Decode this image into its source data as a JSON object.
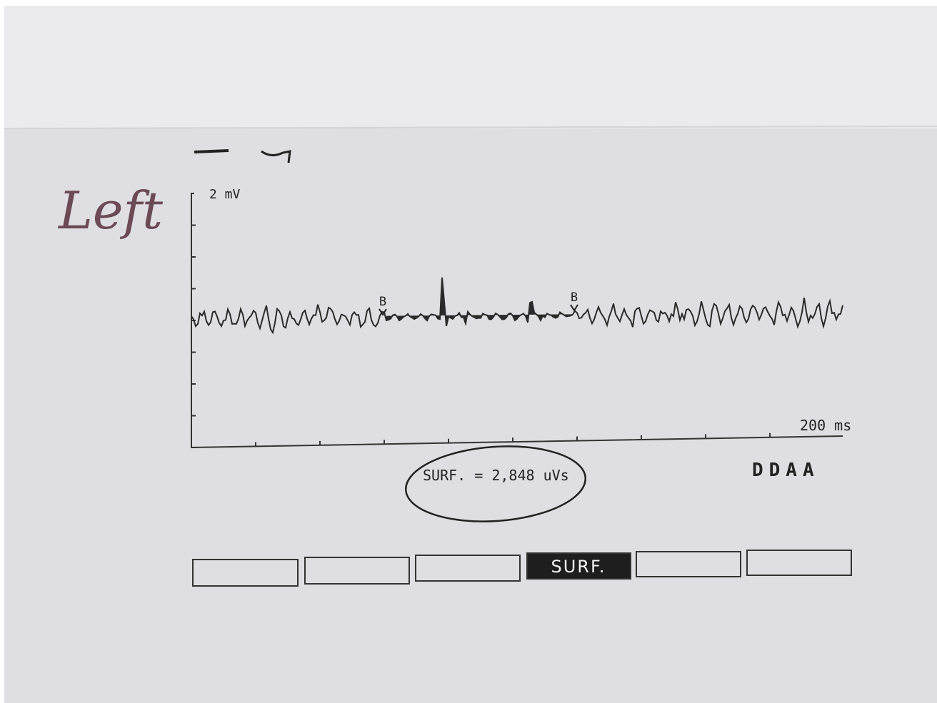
{
  "annotation": {
    "handwritten": "Left"
  },
  "trace": {
    "y_scale": "2 mV",
    "x_scale": "200 ms",
    "markers": [
      "B",
      "B"
    ]
  },
  "result": "SURF. = 2,848 uVs",
  "code": "DDAA",
  "buttons": {
    "active": "SURF."
  }
}
